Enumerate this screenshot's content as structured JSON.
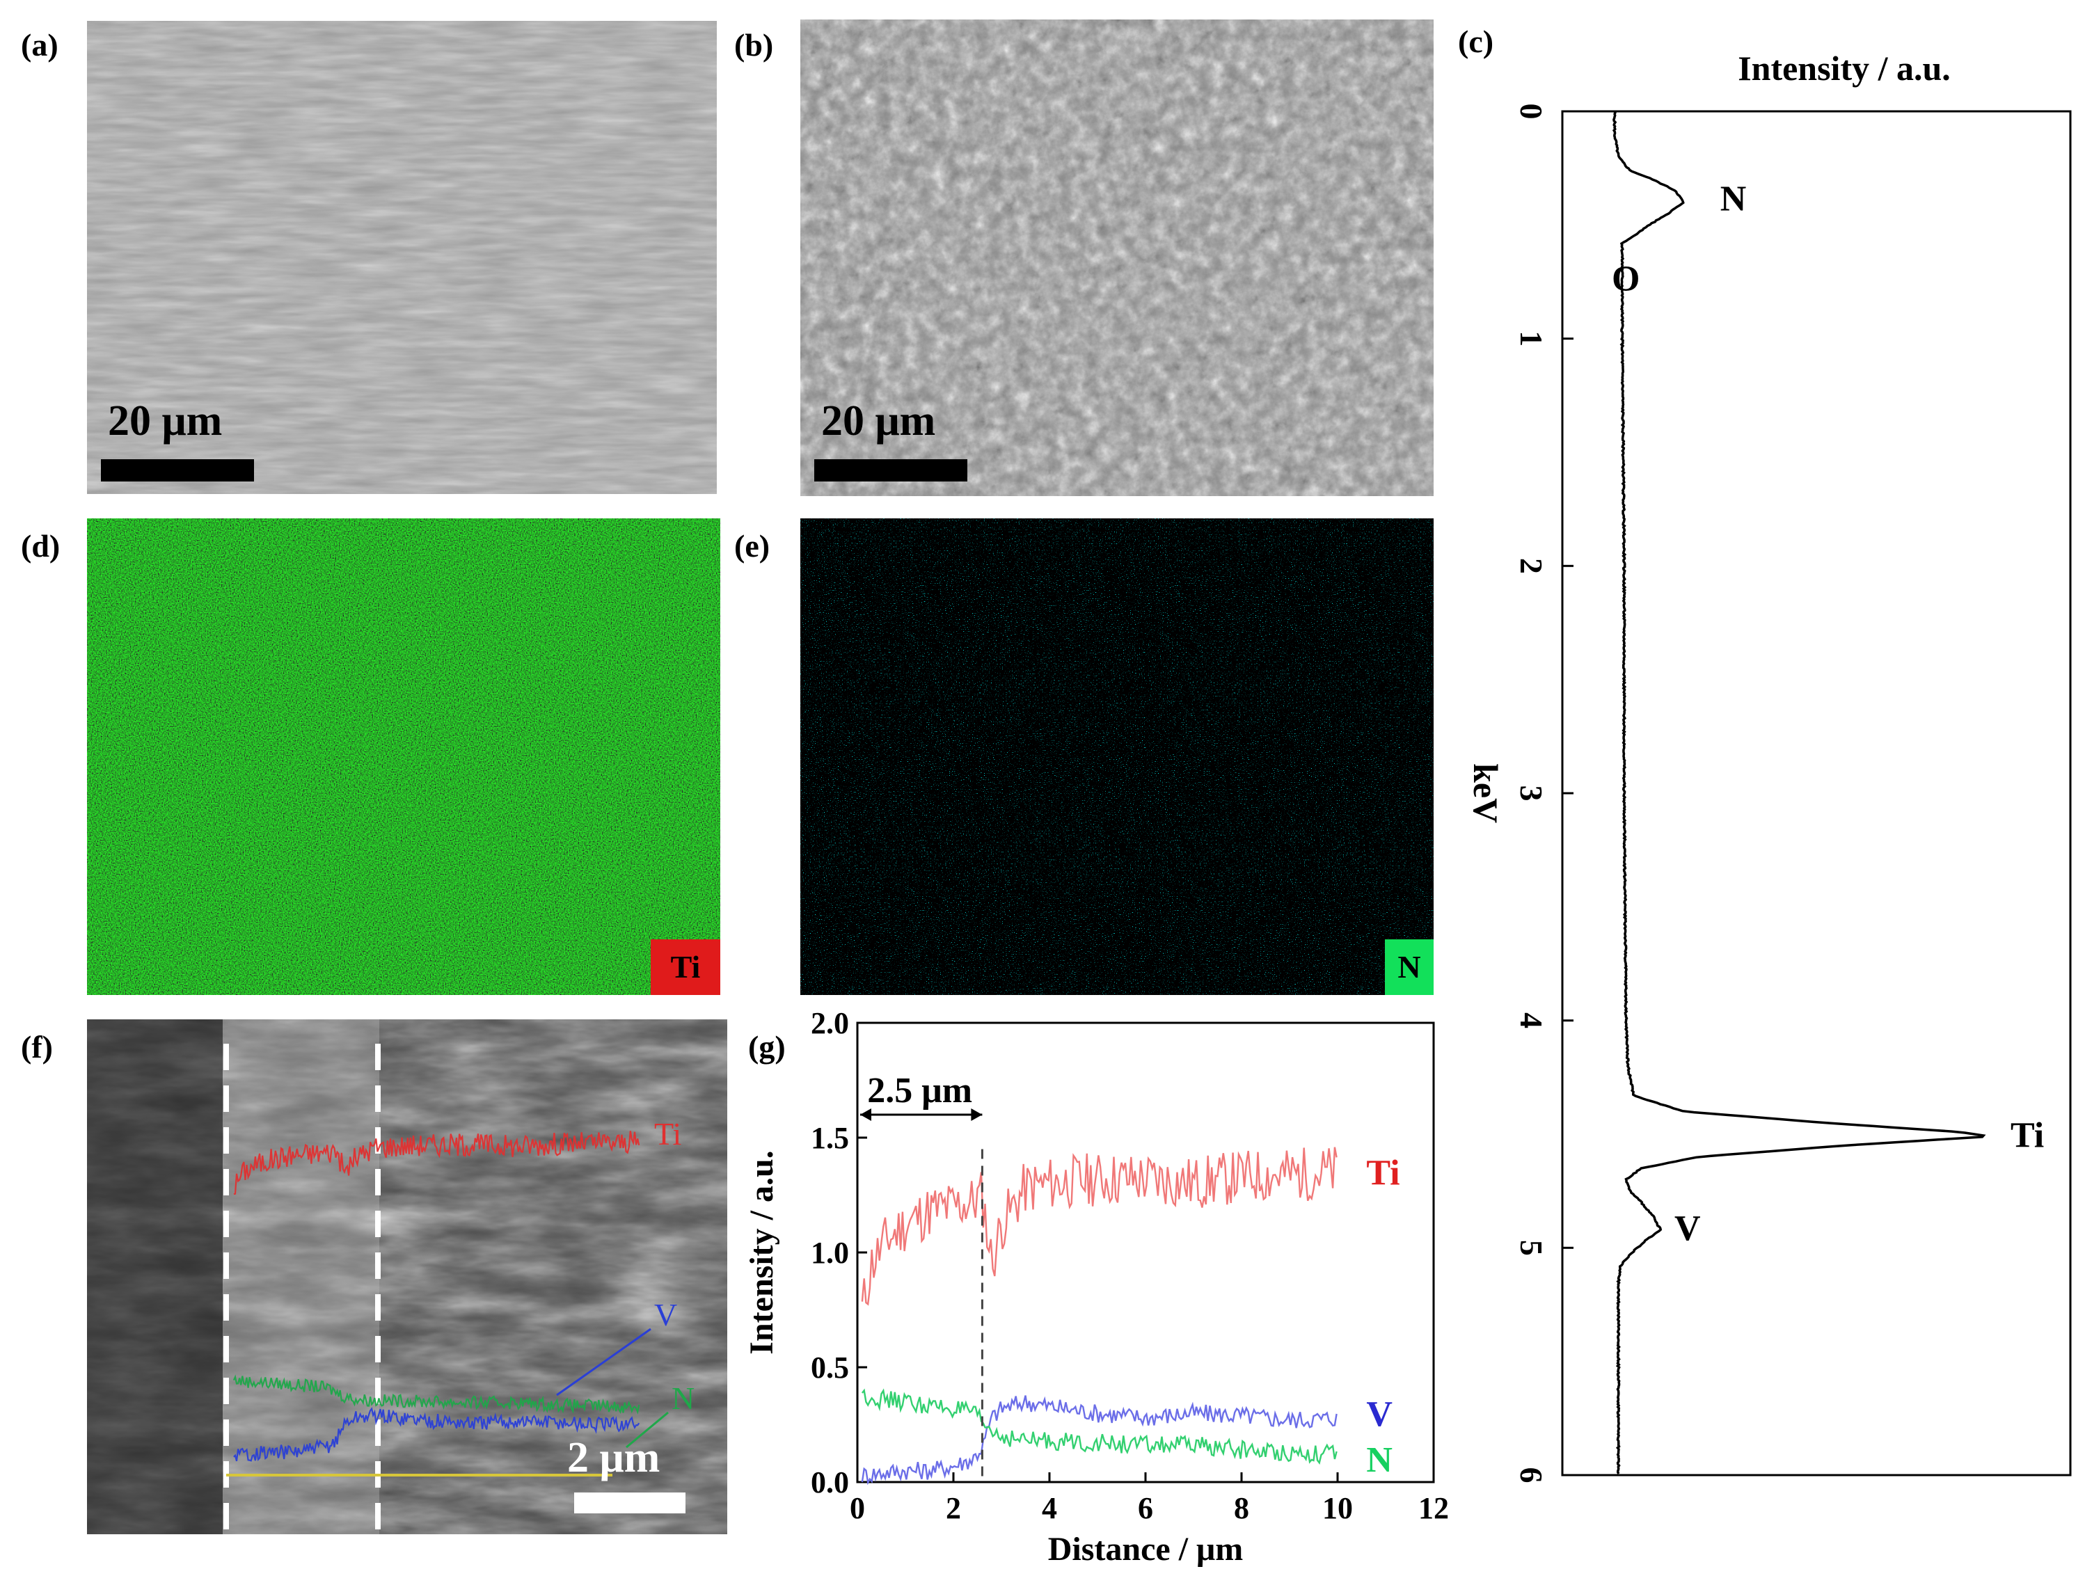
{
  "figure": {
    "panel_labels": [
      "(a)",
      "(b)",
      "(c)",
      "(d)",
      "(e)",
      "(f)",
      "(g)"
    ],
    "sem_top": {
      "scale_bar_a": "20 μm",
      "scale_bar_b": "20 μm"
    },
    "eds_maps": {
      "ti_label": "Ti",
      "n_label": "N",
      "ti_color": "#e01b1b",
      "n_color": "#12e05a"
    },
    "cross_section": {
      "scale_bar": "2 μm",
      "line_labels": [
        "Ti",
        "V",
        "N"
      ],
      "colors": {
        "Ti": "#e03030",
        "V": "#2a3fd6",
        "N": "#1fa84a",
        "scan": "#d7c63a"
      }
    }
  },
  "chart_data": [
    {
      "type": "line",
      "panel": "(c)",
      "title": "Intensity / a.u.",
      "xlabel": "keV",
      "axis_orientation": "keV vertical (top to bottom), intensity horizontal",
      "xlim": [
        0,
        6
      ],
      "x_ticks": [
        "0",
        "1",
        "2",
        "3",
        "4",
        "5",
        "6"
      ],
      "series": [
        {
          "x": [
            0.0,
            0.1,
            0.2,
            0.26,
            0.3,
            0.35,
            0.4,
            0.45,
            0.5,
            0.55,
            0.58,
            0.62,
            0.7,
            1.0,
            2.0,
            3.0,
            4.0,
            4.2,
            4.33,
            4.4,
            4.45,
            4.49,
            4.51,
            4.55,
            4.6,
            4.65,
            4.7,
            4.75,
            4.8,
            4.86,
            4.92,
            4.97,
            5.03,
            5.08,
            5.15,
            6.0
          ],
          "y": [
            0.0,
            0.0,
            0.01,
            0.04,
            0.1,
            0.16,
            0.18,
            0.14,
            0.09,
            0.05,
            0.02,
            0.02,
            0.02,
            0.02,
            0.025,
            0.025,
            0.03,
            0.035,
            0.05,
            0.18,
            0.55,
            0.9,
            0.98,
            0.6,
            0.22,
            0.07,
            0.03,
            0.04,
            0.07,
            0.1,
            0.12,
            0.08,
            0.04,
            0.015,
            0.01,
            0.01
          ]
        }
      ],
      "annotations": [
        {
          "text": "N",
          "x": 0.39
        },
        {
          "text": "O",
          "x": 0.65
        },
        {
          "text": "Ti",
          "x": 4.51
        },
        {
          "text": "V",
          "x": 4.92
        }
      ]
    },
    {
      "type": "line",
      "panel": "(g)",
      "xlabel": "Distance / μm",
      "ylabel": "Intensity / a.u.",
      "xlim": [
        0,
        12
      ],
      "ylim": [
        0,
        2.0
      ],
      "x_ticks": [
        "0",
        "2",
        "4",
        "6",
        "8",
        "10",
        "12"
      ],
      "y_ticks": [
        "0.0",
        "0.5",
        "1.0",
        "1.5",
        "2.0"
      ],
      "annotation": {
        "text": "2.5 μm",
        "x_start": 0,
        "x_end": 2.6
      },
      "series": [
        {
          "name": "Ti",
          "color": "#f07878",
          "x": [
            0.1,
            0.3,
            0.6,
            1.0,
            1.5,
            2.0,
            2.4,
            2.6,
            2.8,
            3.0,
            3.5,
            4.0,
            5.0,
            6.0,
            7.0,
            8.0,
            9.0,
            10.0
          ],
          "values": [
            0.75,
            0.95,
            1.05,
            1.12,
            1.18,
            1.2,
            1.22,
            1.25,
            0.95,
            1.12,
            1.28,
            1.3,
            1.32,
            1.32,
            1.3,
            1.33,
            1.34,
            1.35
          ]
        },
        {
          "name": "V",
          "color": "#6b6ee8",
          "x": [
            0.1,
            0.5,
            1.0,
            1.5,
            2.0,
            2.4,
            2.6,
            2.8,
            3.0,
            3.5,
            4.0,
            5.0,
            6.0,
            7.0,
            8.0,
            9.0,
            10.0
          ],
          "values": [
            0.03,
            0.04,
            0.05,
            0.05,
            0.07,
            0.1,
            0.15,
            0.28,
            0.32,
            0.35,
            0.33,
            0.3,
            0.28,
            0.3,
            0.29,
            0.27,
            0.28
          ]
        },
        {
          "name": "N",
          "color": "#33d070",
          "x": [
            0.1,
            0.5,
            1.0,
            1.5,
            2.0,
            2.4,
            2.6,
            2.8,
            3.0,
            3.5,
            4.0,
            5.0,
            6.0,
            7.0,
            8.0,
            9.0,
            10.0
          ],
          "values": [
            0.38,
            0.36,
            0.35,
            0.33,
            0.32,
            0.3,
            0.26,
            0.22,
            0.2,
            0.18,
            0.18,
            0.17,
            0.16,
            0.16,
            0.14,
            0.13,
            0.12
          ]
        }
      ]
    }
  ]
}
